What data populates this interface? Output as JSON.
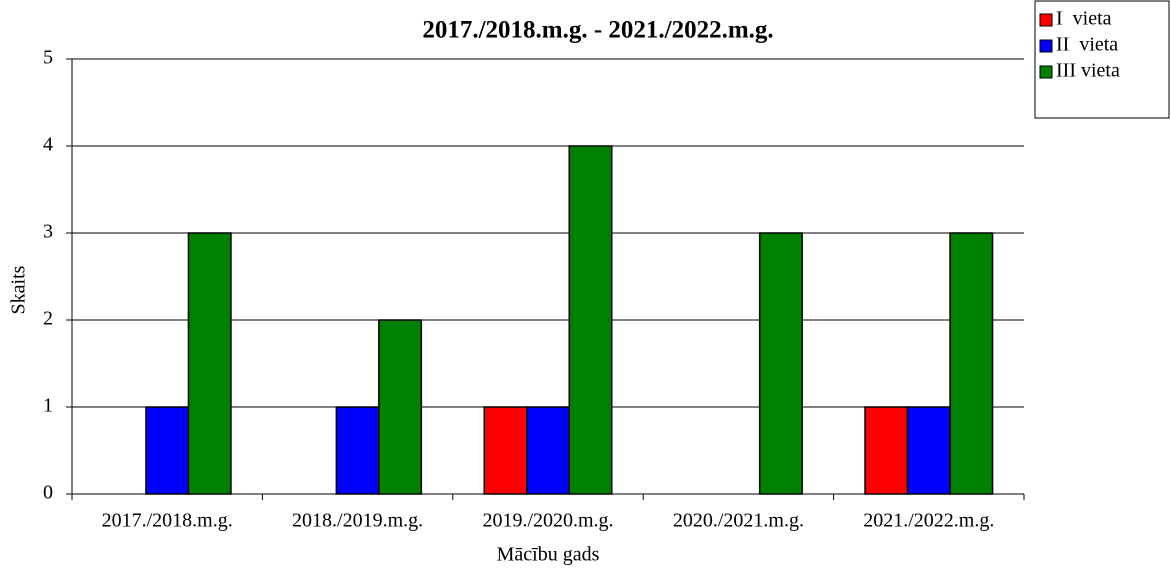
{
  "chart_data": {
    "type": "bar",
    "title": "2017./2018.m.g. - 2021./2022.m.g.",
    "x_label": "Mācību gads",
    "y_label": "Skaits",
    "categories": [
      "2017./2018.m.g.",
      "2018./2019.m.g.",
      "2019./2020.m.g.",
      "2020./2021.m.g.",
      "2021./2022.m.g."
    ],
    "series": [
      {
        "name": "I  vieta",
        "color": "#ff0000",
        "values": [
          0,
          0,
          1,
          0,
          1
        ]
      },
      {
        "name": "II  vieta",
        "color": "#0000ff",
        "values": [
          1,
          1,
          1,
          0,
          1
        ]
      },
      {
        "name": "III vieta",
        "color": "#008000",
        "values": [
          3,
          2,
          4,
          3,
          3
        ]
      }
    ],
    "ylim": [
      0,
      5
    ],
    "yticks": [
      0,
      1,
      2,
      3,
      4,
      5
    ],
    "grid": true,
    "legend": "top-right"
  }
}
